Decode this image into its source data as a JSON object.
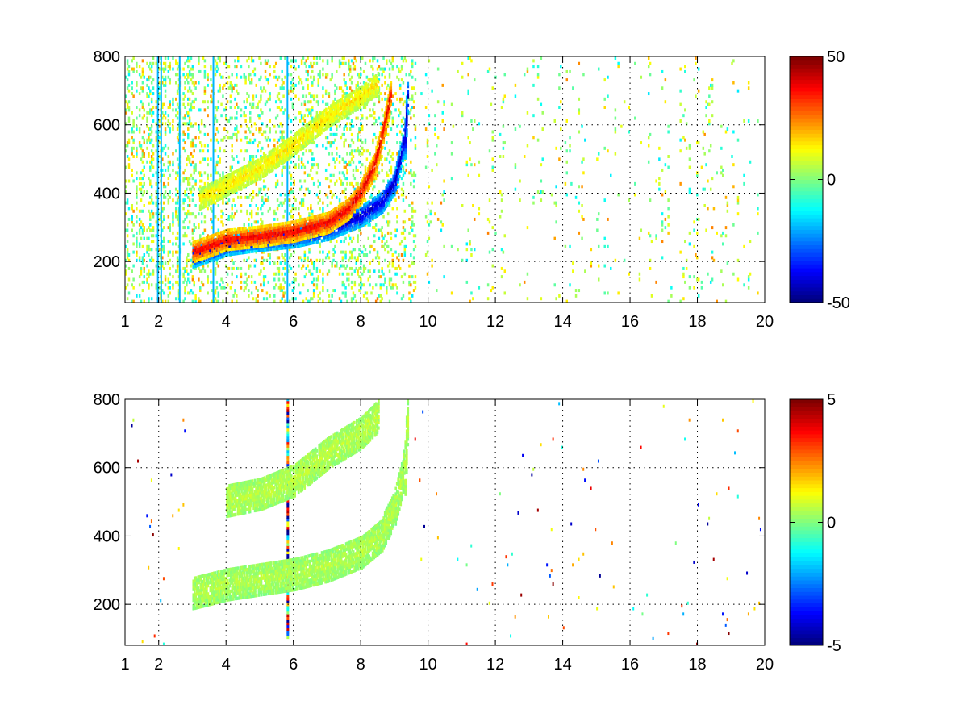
{
  "chart_data": [
    {
      "type": "heatmap",
      "title": "",
      "xlabel": "",
      "ylabel": "",
      "xlim": [
        1,
        20
      ],
      "ylim": [
        80,
        800
      ],
      "x_ticks": [
        "1",
        "2",
        "4",
        "6",
        "8",
        "10",
        "12",
        "14",
        "16",
        "18",
        "20"
      ],
      "y_ticks": [
        "200",
        "400",
        "600",
        "800"
      ],
      "grid": true,
      "colorscale": "jet",
      "clim": [
        -50,
        50
      ],
      "colorbar_ticks": [
        "50",
        "0",
        "-50"
      ],
      "features": [
        {
          "name": "main band (negative)",
          "x": [
            3.0,
            4.0,
            5.0,
            6.0,
            7.0,
            8.0,
            8.6,
            9.0,
            9.3,
            9.4
          ],
          "y": [
            210,
            245,
            258,
            268,
            290,
            330,
            370,
            430,
            560,
            720
          ],
          "value": -45
        },
        {
          "name": "main band (positive)",
          "x": [
            3.0,
            4.0,
            5.0,
            6.0,
            7.0,
            7.6,
            8.0,
            8.4,
            8.7,
            8.9
          ],
          "y": [
            225,
            260,
            270,
            285,
            310,
            350,
            400,
            480,
            600,
            700
          ],
          "value": 40
        },
        {
          "name": "upper branch",
          "x": [
            3.2,
            4.0,
            5.0,
            6.0,
            7.0,
            8.0,
            8.5
          ],
          "y": [
            380,
            420,
            470,
            540,
            620,
            680,
            720
          ],
          "value": 15
        }
      ]
    },
    {
      "type": "heatmap",
      "title": "",
      "xlabel": "",
      "ylabel": "",
      "xlim": [
        1,
        20
      ],
      "ylim": [
        80,
        800
      ],
      "x_ticks": [
        "1",
        "2",
        "4",
        "6",
        "8",
        "10",
        "12",
        "14",
        "16",
        "18",
        "20"
      ],
      "y_ticks": [
        "200",
        "400",
        "600",
        "800"
      ],
      "grid": true,
      "colorscale": "jet",
      "clim": [
        -5,
        5
      ],
      "colorbar_ticks": [
        "5",
        "0",
        "-5"
      ],
      "features": [
        {
          "name": "main band",
          "x": [
            3.0,
            4.0,
            5.0,
            6.0,
            7.0,
            8.0,
            8.6,
            9.0,
            9.3,
            9.4
          ],
          "y": [
            230,
            255,
            270,
            285,
            310,
            350,
            400,
            480,
            600,
            780
          ],
          "value": 0.5
        },
        {
          "name": "upper branch",
          "x": [
            4.0,
            5.0,
            6.0,
            7.0,
            8.0,
            8.5
          ],
          "y": [
            500,
            520,
            560,
            640,
            700,
            750
          ],
          "value": 0.6
        }
      ]
    }
  ]
}
